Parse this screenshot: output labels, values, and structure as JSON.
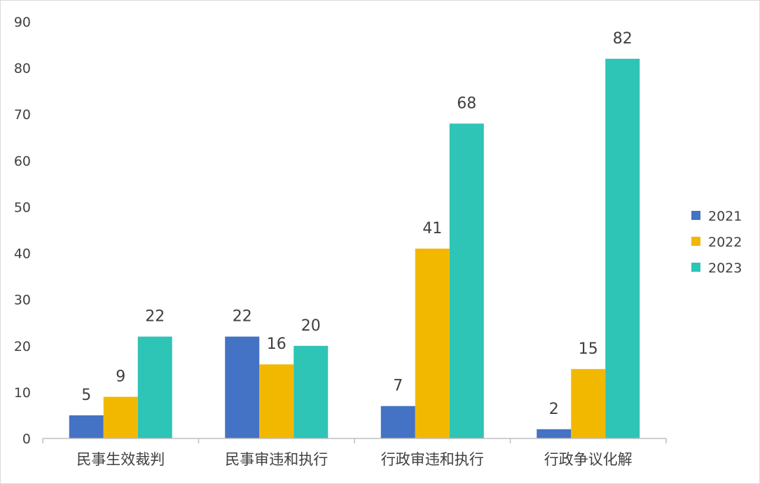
{
  "chart_data": {
    "type": "bar",
    "categories": [
      "民事生效裁判",
      "民事审违和执行",
      "行政审违和执行",
      "行政争议化解"
    ],
    "series": [
      {
        "name": "2021",
        "values": [
          5,
          22,
          7,
          2
        ],
        "color": "#4472C4"
      },
      {
        "name": "2022",
        "values": [
          9,
          16,
          41,
          15
        ],
        "color": "#F2B800"
      },
      {
        "name": "2023",
        "values": [
          22,
          20,
          68,
          82
        ],
        "color": "#2EC4B6"
      }
    ],
    "title": "",
    "xlabel": "",
    "ylabel": "",
    "ylim": [
      0,
      90
    ],
    "yticks": [
      0,
      10,
      20,
      30,
      40,
      50,
      60,
      70,
      80,
      90
    ],
    "grid": false,
    "legend_position": "right",
    "data_labels": true
  }
}
